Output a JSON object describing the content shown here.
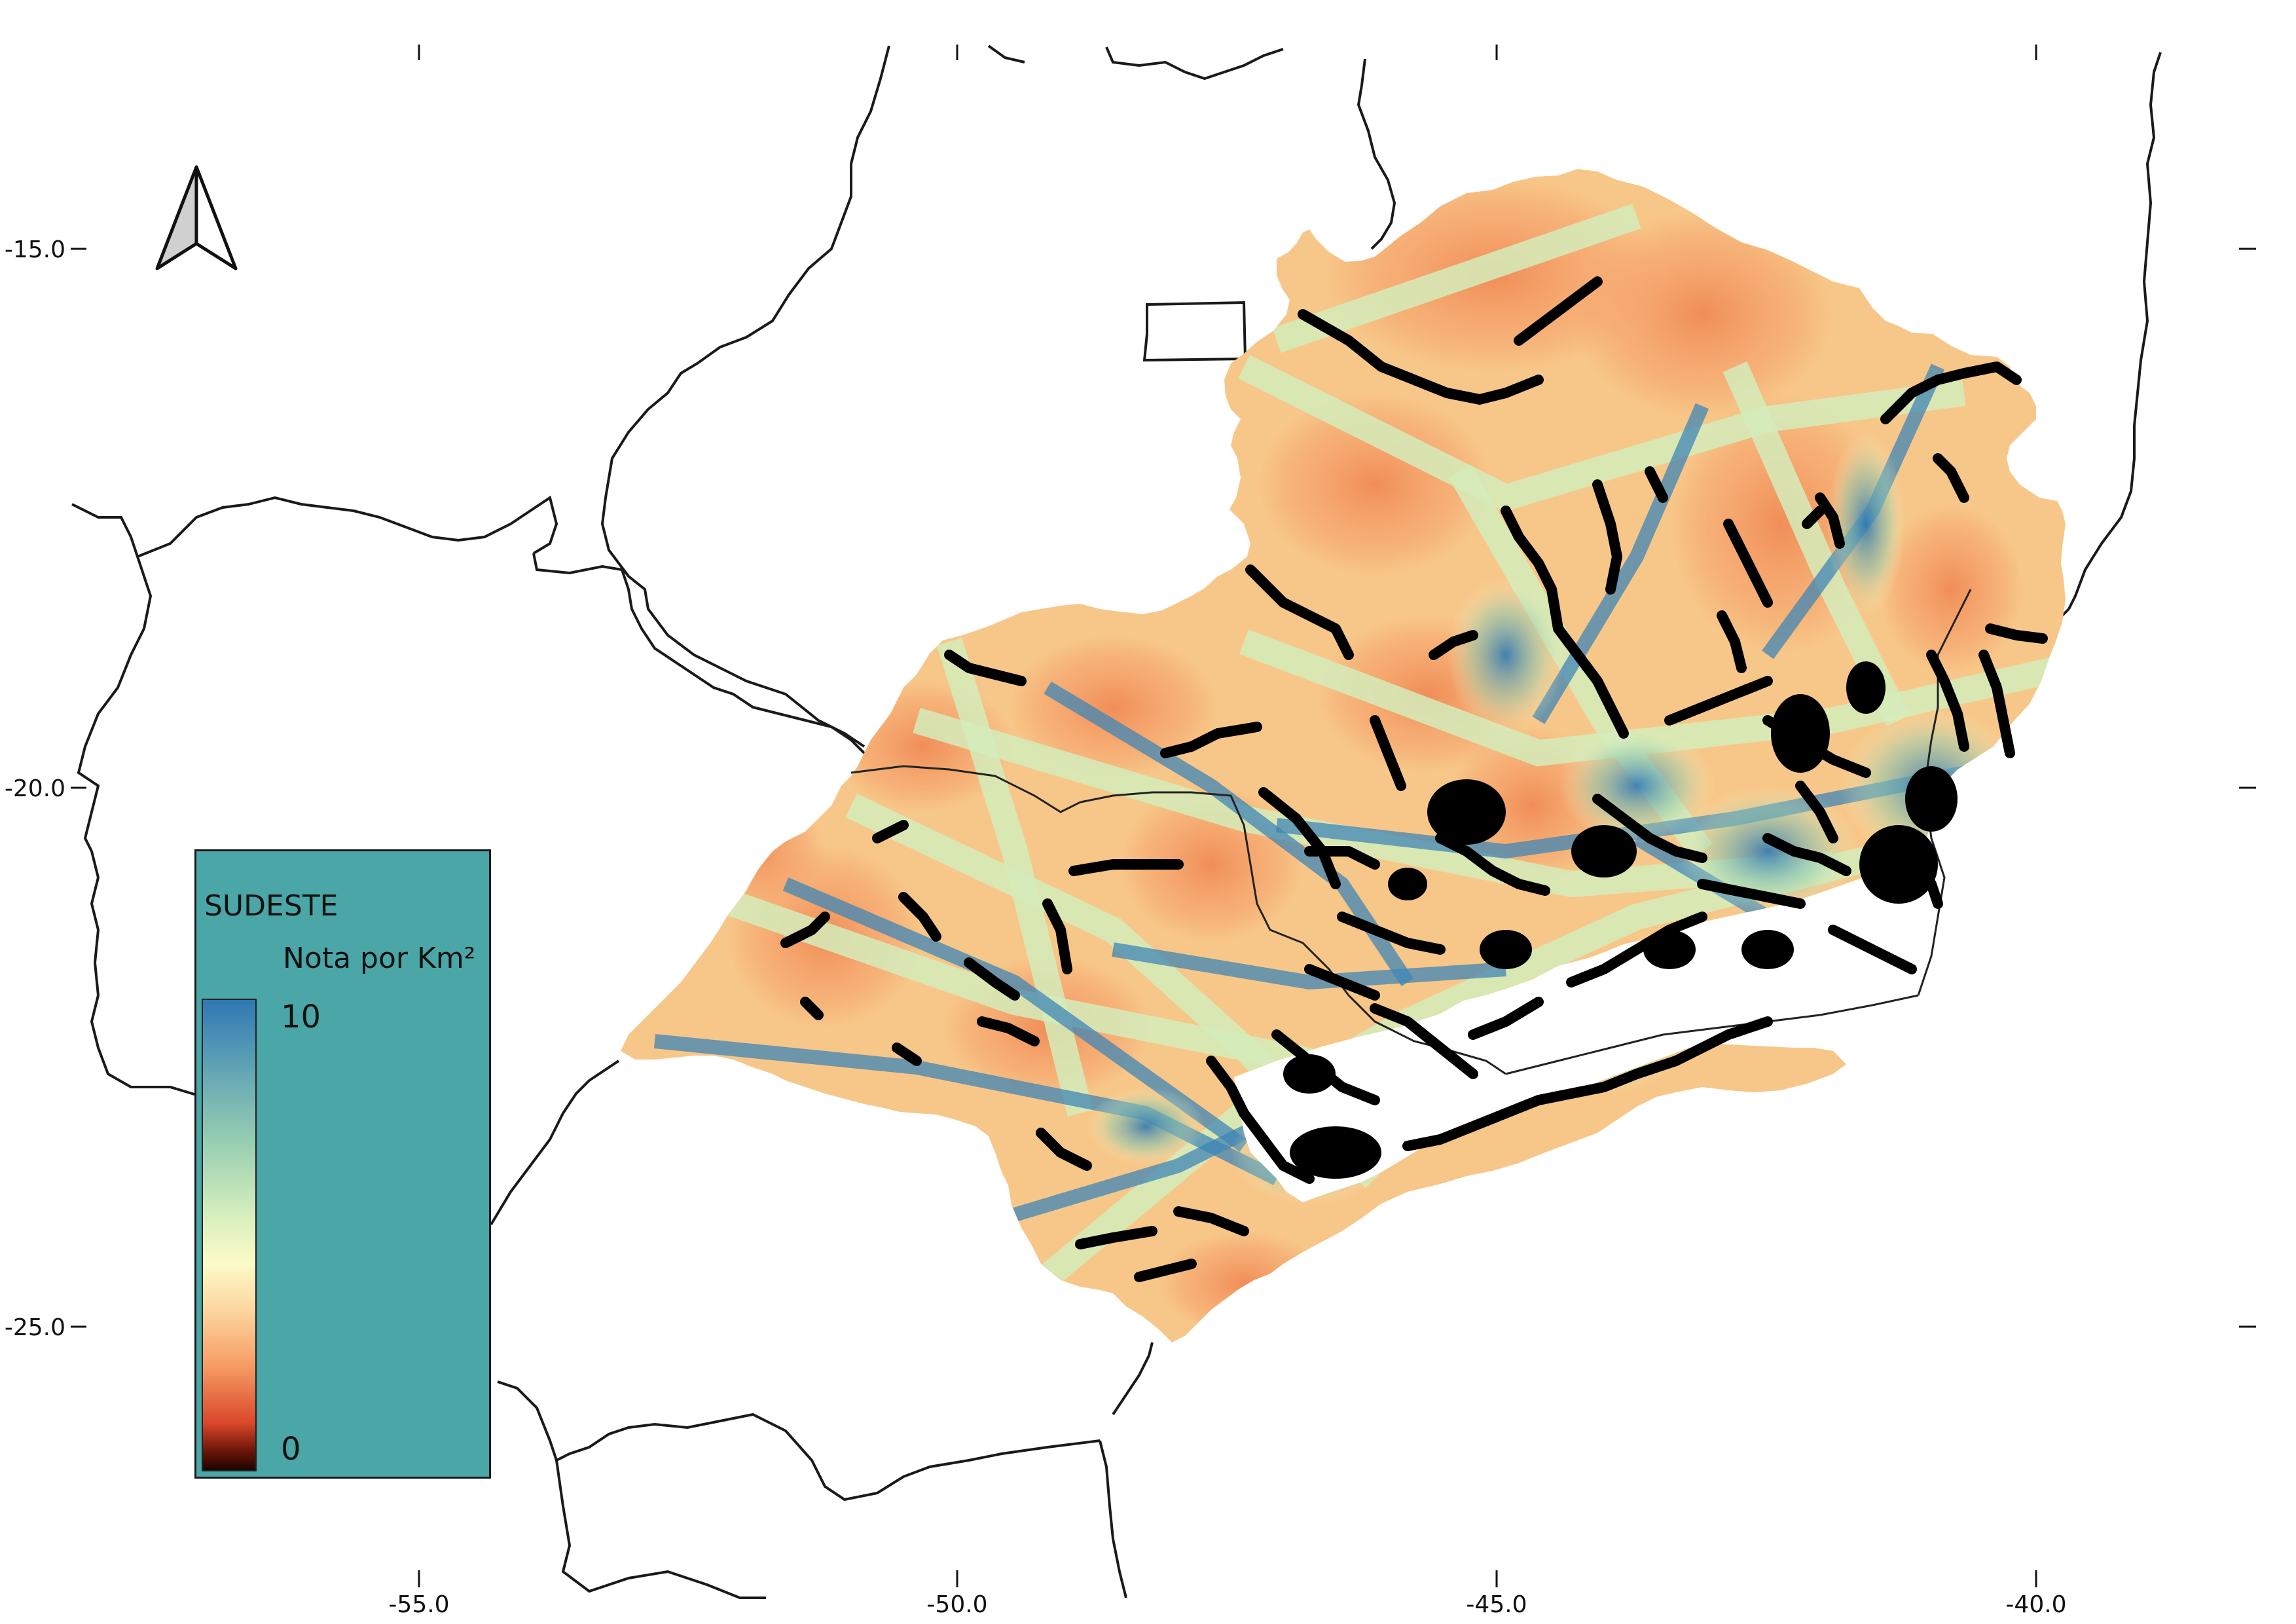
{
  "map": {
    "region": "SUDESTE",
    "axes": {
      "x_ticks": [
        "-55.0",
        "-50.0",
        "-45.0",
        "-40.0"
      ],
      "y_ticks": [
        "-15.0",
        "-20.0",
        "-25.0"
      ]
    },
    "legend": {
      "title": "SUDESTE",
      "subtitle": "Nota por Km²",
      "max_label": "10",
      "min_label": "0",
      "color_ramp": [
        "#2f78b4",
        "#96ceb1",
        "#fcfbc8",
        "#f69b62",
        "#d9472a",
        "#1a0500"
      ]
    },
    "north_arrow": "north-arrow-icon",
    "colors": {
      "low": "#f4a26a",
      "mid": "#fcf6c3",
      "high": "#3c86b8",
      "roads": "#000000",
      "background": "#ffffff",
      "legend_bg": "#4aa6a7"
    }
  }
}
